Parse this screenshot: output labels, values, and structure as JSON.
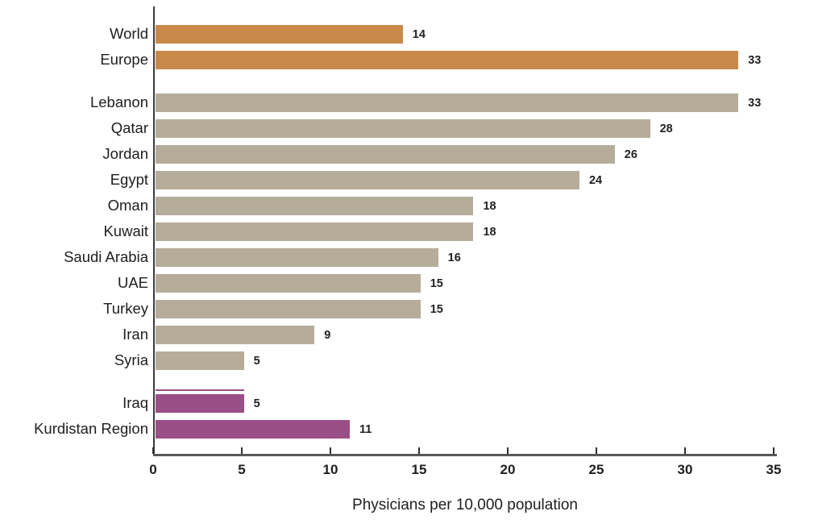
{
  "chart_data": {
    "type": "bar",
    "orientation": "horizontal",
    "title": "",
    "xlabel": "Physicians per 10,000 population",
    "ylabel": "",
    "xlim": [
      0,
      35
    ],
    "xticks": [
      0,
      5,
      10,
      15,
      20,
      25,
      30,
      35
    ],
    "grid": false,
    "legend": false,
    "value_labels": true,
    "colors": {
      "benchmark_orange": "#c9894b",
      "country_tan": "#b5ac9a",
      "iraq_purple": "#9a4e86",
      "axis_dark": "#3b3b3d",
      "axis_gray": "#59595b",
      "text": "#231f20"
    },
    "groups": [
      {
        "name": "global-benchmarks",
        "bars": [
          {
            "label": "World",
            "value": 14,
            "color": "#c9894b"
          },
          {
            "label": "Europe",
            "value": 33,
            "color": "#c9894b"
          }
        ]
      },
      {
        "name": "regional-countries",
        "bars": [
          {
            "label": "Lebanon",
            "value": 33,
            "color": "#b5ac9a"
          },
          {
            "label": "Qatar",
            "value": 28,
            "color": "#b5ac9a"
          },
          {
            "label": "Jordan",
            "value": 26,
            "color": "#b5ac9a"
          },
          {
            "label": "Egypt",
            "value": 24,
            "color": "#b5ac9a"
          },
          {
            "label": "Oman",
            "value": 18,
            "color": "#b5ac9a"
          },
          {
            "label": "Kuwait",
            "value": 18,
            "color": "#b5ac9a"
          },
          {
            "label": "Saudi Arabia",
            "value": 16,
            "color": "#b5ac9a"
          },
          {
            "label": "UAE",
            "value": 15,
            "color": "#b5ac9a"
          },
          {
            "label": "Turkey",
            "value": 15,
            "color": "#b5ac9a"
          },
          {
            "label": "Iran",
            "value": 9,
            "color": "#b5ac9a"
          },
          {
            "label": "Syria",
            "value": 5,
            "color": "#b5ac9a"
          }
        ]
      },
      {
        "name": "iraq-kurdistan",
        "artifact_stripe": true,
        "bars": [
          {
            "label": "Iraq",
            "value": 5,
            "color": "#9a4e86"
          },
          {
            "label": "Kurdistan Region",
            "value": 11,
            "color": "#9a4e86"
          }
        ]
      }
    ]
  }
}
